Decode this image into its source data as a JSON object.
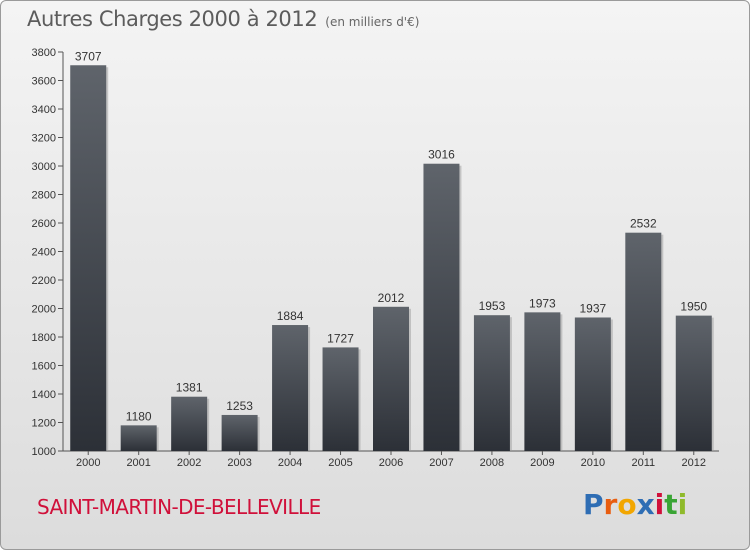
{
  "header": {
    "title": "Autres Charges 2000 à 2012",
    "subtitle": "(en milliers d'€)"
  },
  "footer": {
    "commune": "SAINT-MARTIN-DE-BELLEVILLE",
    "logo_text": "Proxiti",
    "logo_colors": [
      "#2e6db4",
      "#e85d10",
      "#f2a600",
      "#2e6db4",
      "#d0103a",
      "#3aa535",
      "#8fba2b"
    ]
  },
  "colors": {
    "bar_top": "#5f646b",
    "bar_bottom": "#2c3037",
    "commune": "#d0103a"
  },
  "chart_data": {
    "type": "bar",
    "title": "Autres Charges 2000 à 2012",
    "subtitle": "(en milliers d'€)",
    "xlabel": "",
    "ylabel": "",
    "categories": [
      "2000",
      "2001",
      "2002",
      "2003",
      "2004",
      "2005",
      "2006",
      "2007",
      "2008",
      "2009",
      "2010",
      "2011",
      "2012"
    ],
    "values": [
      3707,
      1180,
      1381,
      1253,
      1884,
      1727,
      2012,
      3016,
      1953,
      1973,
      1937,
      2532,
      1950
    ],
    "ylim": [
      1000,
      3800
    ],
    "yticks": [
      1000,
      1200,
      1400,
      1600,
      1800,
      2000,
      2200,
      2400,
      2600,
      2800,
      3000,
      3200,
      3400,
      3600,
      3800
    ],
    "grid": false,
    "legend": "none"
  }
}
